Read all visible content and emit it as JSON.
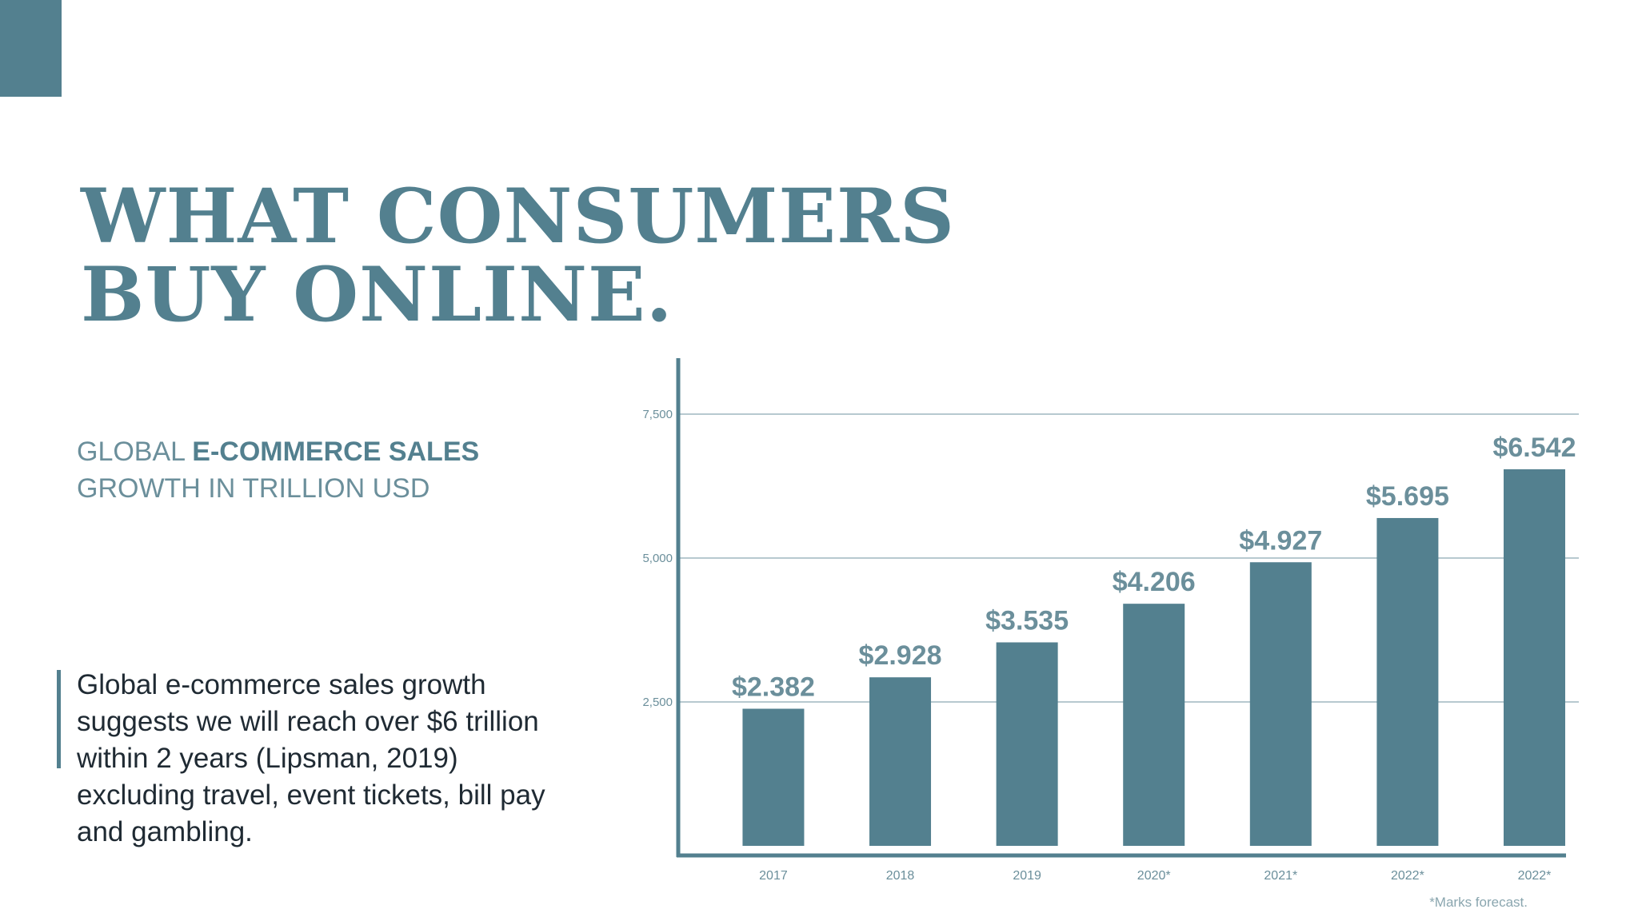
{
  "slide": {
    "title_line1": "WHAT CONSUMERS",
    "title_line2": "BUY ONLINE.",
    "subtitle_part1": "GLOBAL ",
    "subtitle_bold": "E-COMMERCE SALES",
    "subtitle_line2": "GROWTH IN TRILLION USD",
    "body": "Global e-commerce sales growth suggests we will reach over $6 trillion within 2 years (Lipsman, 2019) excluding travel, event tickets, bill pay and gambling.",
    "accent_color": "#53808f"
  },
  "chart_data": {
    "type": "bar",
    "categories": [
      "2017",
      "2018",
      "2019",
      "2020*",
      "2021*",
      "2022*",
      "2022*"
    ],
    "values": [
      2382,
      2928,
      3535,
      4206,
      4927,
      5695,
      6542
    ],
    "data_labels": [
      "$2.382",
      "$2.928",
      "$3.535",
      "$4.206",
      "$4.927",
      "$5.695",
      "$6.542"
    ],
    "y_ticks": [
      2500,
      5000,
      7500
    ],
    "y_tick_labels": [
      "2,500",
      "5,000",
      "7,500"
    ],
    "ylim": [
      0,
      8400
    ],
    "grid": true,
    "bar_color": "#53808f",
    "footnote": "*Marks forecast."
  }
}
